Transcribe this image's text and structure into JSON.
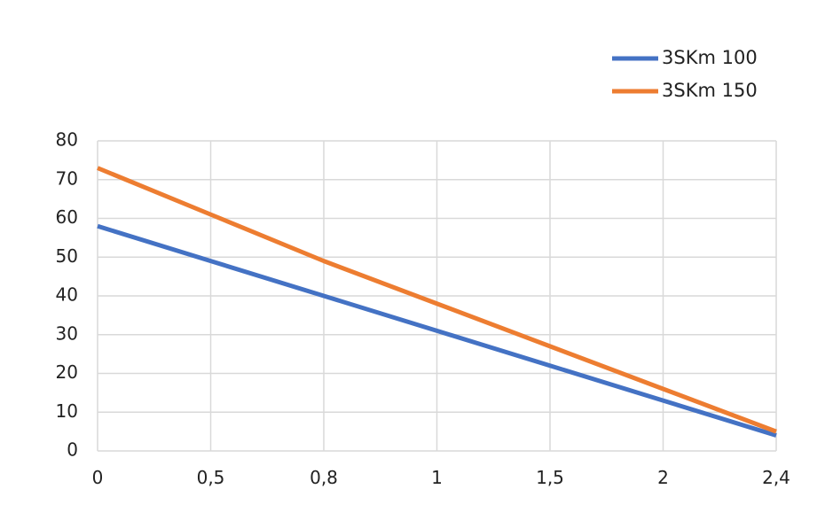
{
  "chart_data": {
    "type": "line",
    "title": "",
    "xlabel": "",
    "ylabel": "",
    "categories": [
      "0",
      "0,5",
      "0,8",
      "1",
      "1,5",
      "2",
      "2,4"
    ],
    "y_ticks": [
      "0",
      "10",
      "20",
      "30",
      "40",
      "50",
      "60",
      "70",
      "80"
    ],
    "ylim": [
      0,
      80
    ],
    "grid": true,
    "legend_position": "top-right",
    "series": [
      {
        "name": "3SKm 100",
        "color": "#4472C4",
        "values": [
          58,
          49,
          40,
          31,
          22,
          13,
          4
        ]
      },
      {
        "name": "3SKm 150",
        "color": "#ED7D31",
        "values": [
          73,
          61,
          49,
          38,
          27,
          16,
          5
        ]
      }
    ],
    "grid_color": "#D9D9D9"
  }
}
